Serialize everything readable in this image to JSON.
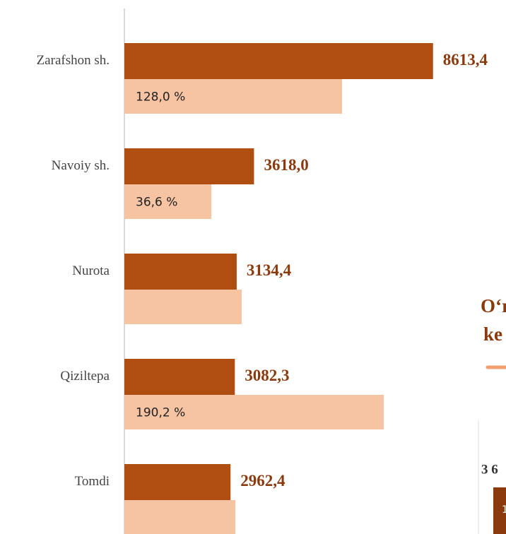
{
  "chart_data": {
    "type": "bar",
    "orientation": "horizontal",
    "categories": [
      "Zarafshon sh.",
      "Navoiy sh.",
      "Nurota",
      "Qiziltepa",
      "Tomdi"
    ],
    "series": [
      {
        "color": "#b04e12",
        "values": [
          8613.4,
          3618.0,
          3134.4,
          3082.3,
          2962.4
        ],
        "value_labels": [
          "8613,4",
          "3618,0",
          "3134,4",
          "3082,3",
          "2962,4"
        ]
      },
      {
        "color": "#f6c3a3",
        "values": [
          6075,
          2426,
          3274,
          7239,
          3097
        ],
        "value_labels": [
          "128,0 %",
          "36,6 %",
          null,
          "190,2 %",
          null
        ]
      }
    ],
    "xlim": [
      0,
      10650
    ],
    "side_fragment": {
      "title_lines": [
        "O‘r",
        "ke"
      ],
      "value_label": "3 6",
      "bar_label": "1"
    }
  }
}
